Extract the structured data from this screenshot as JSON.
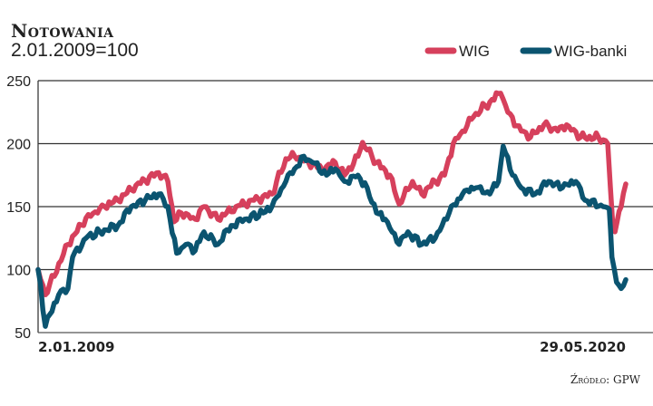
{
  "chart_data": {
    "type": "line",
    "title": "Notowania",
    "subtitle": "2.01.2009=100",
    "source": "Źródło: GPW",
    "xlabel": "",
    "ylabel": "",
    "ylim": [
      50,
      250
    ],
    "yticks": [
      250,
      200,
      150,
      100,
      50
    ],
    "ytick_labels": [
      "250",
      "200",
      "150",
      "100",
      "50"
    ],
    "xlim": [
      2009.0,
      2020.41
    ],
    "x_tick_labels": [
      "2.01.2009",
      "29.05.2020"
    ],
    "grid": true,
    "legend_position": "top-right",
    "colors": {
      "WIG": "#d6405c",
      "WIG-banki": "#0b5470"
    },
    "series": [
      {
        "name": "WIG",
        "points": [
          [
            2009.0,
            100
          ],
          [
            2009.14,
            80
          ],
          [
            2009.58,
            120
          ],
          [
            2009.93,
            141
          ],
          [
            2010.29,
            150
          ],
          [
            2010.55,
            155
          ],
          [
            2010.9,
            167
          ],
          [
            2011.34,
            177
          ],
          [
            2011.52,
            170
          ],
          [
            2011.64,
            138
          ],
          [
            2011.78,
            145
          ],
          [
            2012.05,
            140
          ],
          [
            2012.22,
            150
          ],
          [
            2012.49,
            140
          ],
          [
            2012.84,
            150
          ],
          [
            2013.19,
            155
          ],
          [
            2013.54,
            160
          ],
          [
            2013.81,
            188
          ],
          [
            2013.98,
            190
          ],
          [
            2014.25,
            185
          ],
          [
            2014.51,
            180
          ],
          [
            2014.77,
            185
          ],
          [
            2014.95,
            175
          ],
          [
            2015.21,
            190
          ],
          [
            2015.3,
            201
          ],
          [
            2015.57,
            185
          ],
          [
            2015.83,
            175
          ],
          [
            2016.01,
            152
          ],
          [
            2016.27,
            170
          ],
          [
            2016.45,
            160
          ],
          [
            2016.71,
            170
          ],
          [
            2016.89,
            175
          ],
          [
            2017.06,
            200
          ],
          [
            2017.24,
            210
          ],
          [
            2017.5,
            224
          ],
          [
            2017.77,
            233
          ],
          [
            2017.98,
            240
          ],
          [
            2018.12,
            225
          ],
          [
            2018.38,
            210
          ],
          [
            2018.56,
            205
          ],
          [
            2018.82,
            215
          ],
          [
            2019.09,
            210
          ],
          [
            2019.26,
            215
          ],
          [
            2019.53,
            205
          ],
          [
            2019.88,
            205
          ],
          [
            2020.06,
            200
          ],
          [
            2020.16,
            134
          ],
          [
            2020.2,
            130
          ],
          [
            2020.32,
            150
          ],
          [
            2020.41,
            168
          ]
        ]
      },
      {
        "name": "WIG-banki",
        "points": [
          [
            2009.0,
            100
          ],
          [
            2009.14,
            55
          ],
          [
            2009.4,
            80
          ],
          [
            2009.58,
            85
          ],
          [
            2009.67,
            110
          ],
          [
            2009.93,
            125
          ],
          [
            2010.2,
            130
          ],
          [
            2010.55,
            135
          ],
          [
            2010.81,
            150
          ],
          [
            2011.08,
            155
          ],
          [
            2011.34,
            160
          ],
          [
            2011.52,
            150
          ],
          [
            2011.69,
            113
          ],
          [
            2011.87,
            120
          ],
          [
            2012.05,
            115
          ],
          [
            2012.22,
            130
          ],
          [
            2012.49,
            120
          ],
          [
            2012.75,
            135
          ],
          [
            2013.01,
            140
          ],
          [
            2013.37,
            145
          ],
          [
            2013.54,
            150
          ],
          [
            2013.81,
            170
          ],
          [
            2013.98,
            180
          ],
          [
            2014.16,
            190
          ],
          [
            2014.33,
            185
          ],
          [
            2014.6,
            175
          ],
          [
            2014.77,
            180
          ],
          [
            2014.95,
            170
          ],
          [
            2015.21,
            175
          ],
          [
            2015.39,
            165
          ],
          [
            2015.57,
            145
          ],
          [
            2015.74,
            140
          ],
          [
            2016.01,
            120
          ],
          [
            2016.18,
            130
          ],
          [
            2016.45,
            120
          ],
          [
            2016.71,
            125
          ],
          [
            2016.98,
            145
          ],
          [
            2017.24,
            160
          ],
          [
            2017.5,
            165
          ],
          [
            2017.77,
            160
          ],
          [
            2017.94,
            170
          ],
          [
            2018.03,
            198
          ],
          [
            2018.21,
            175
          ],
          [
            2018.38,
            165
          ],
          [
            2018.65,
            160
          ],
          [
            2018.91,
            170
          ],
          [
            2019.18,
            165
          ],
          [
            2019.44,
            170
          ],
          [
            2019.62,
            155
          ],
          [
            2019.97,
            150
          ],
          [
            2020.09,
            148
          ],
          [
            2020.14,
            110
          ],
          [
            2020.23,
            90
          ],
          [
            2020.32,
            85
          ],
          [
            2020.41,
            92
          ]
        ]
      }
    ]
  }
}
